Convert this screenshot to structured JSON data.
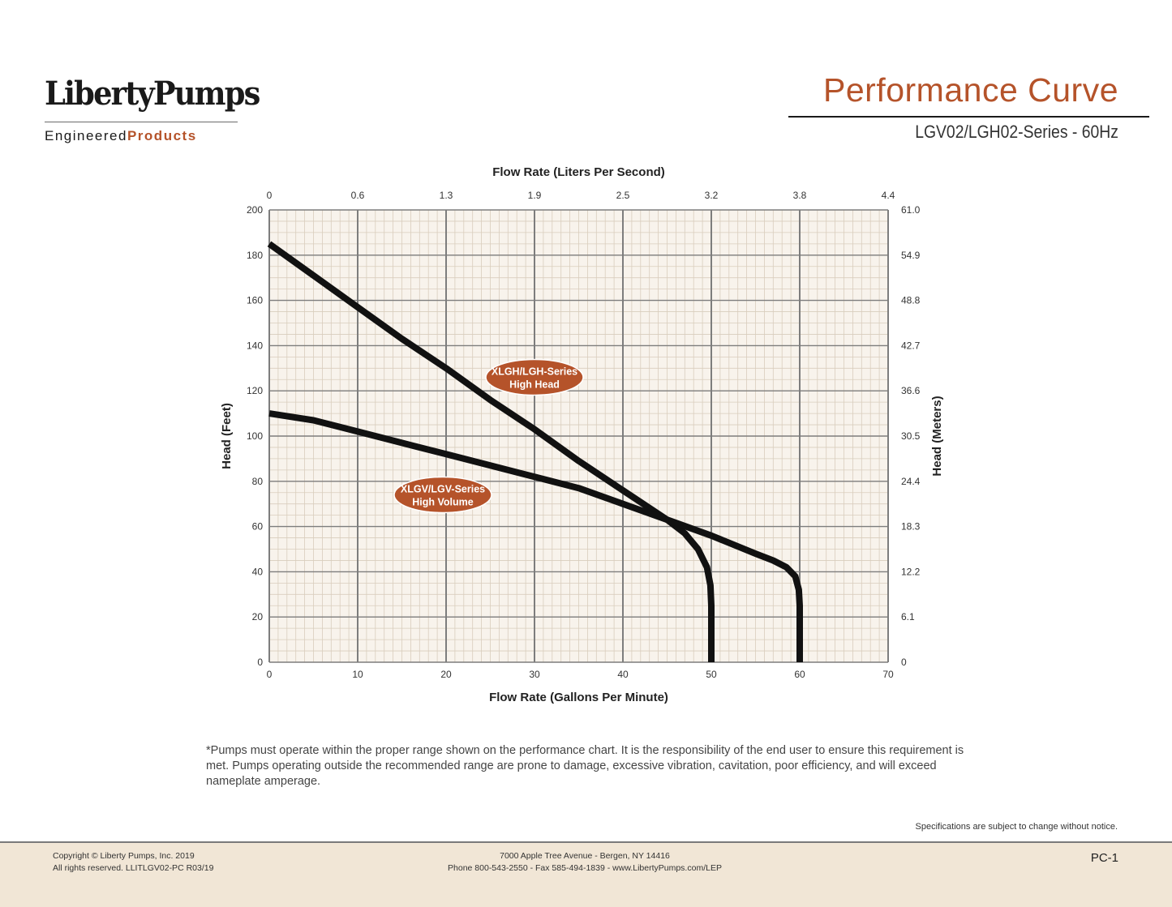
{
  "header": {
    "brand": "LibertyPumps",
    "sub_plain": "Engineered",
    "sub_accent": "Products",
    "title": "Performance Curve",
    "subtitle": "LGV02/LGH02-Series - 60Hz"
  },
  "colors": {
    "accent": "#b5532a",
    "label_fill": "#b5532a",
    "grid_minor": "#d9cdbd",
    "grid_major": "#7d7d7d",
    "plot_bg": "#f8f3ec",
    "footer_bg": "#f1e6d6"
  },
  "chart_data": {
    "type": "line",
    "xlabel": "Flow Rate (Gallons Per Minute)",
    "x2label": "Flow Rate (Liters Per Second)",
    "ylabel": "Head (Feet)",
    "y2label": "Head (Meters)",
    "xlim": [
      0,
      70
    ],
    "ylim": [
      0,
      200
    ],
    "x_ticks": [
      0,
      10,
      20,
      30,
      40,
      50,
      60,
      70
    ],
    "y_ticks": [
      0,
      20,
      40,
      60,
      80,
      100,
      120,
      140,
      160,
      180,
      200
    ],
    "x2_ticks": [
      "0",
      "0.6",
      "1.3",
      "1.9",
      "2.5",
      "3.2",
      "3.8",
      "4.4"
    ],
    "y2_ticks": [
      "0",
      "6.1",
      "12.2",
      "18.3",
      "24.4",
      "30.5",
      "36.6",
      "42.7",
      "48.8",
      "54.9",
      "61.0"
    ],
    "grid": true,
    "series": [
      {
        "name": "XLGH/LGH-Series",
        "label_line2": "High Head",
        "label_x": 30,
        "label_y": 126,
        "x": [
          0,
          5,
          10,
          15,
          20,
          25,
          30,
          35,
          40,
          45,
          47,
          48.5,
          49.5,
          49.9,
          50,
          50
        ],
        "y": [
          185,
          171,
          157,
          143,
          130,
          116,
          103,
          89,
          76,
          63,
          57,
          50,
          42,
          34,
          25,
          0
        ]
      },
      {
        "name": "XLGV/LGV-Series",
        "label_line2": "High Volume",
        "label_x": 20,
        "label_y": 74,
        "x": [
          0,
          5,
          10,
          15,
          20,
          25,
          30,
          35,
          40,
          45,
          50,
          55,
          57,
          58.5,
          59.5,
          59.9,
          60,
          60
        ],
        "y": [
          110,
          107,
          102,
          97,
          92,
          87,
          82,
          77,
          70,
          63,
          56,
          48,
          45,
          42,
          38,
          32,
          25,
          0
        ]
      }
    ]
  },
  "footnote": "*Pumps must operate within the proper range shown on the performance chart. It is the responsibility of the end user to ensure this requirement is met. Pumps operating outside the recommended range are prone to damage, excessive vibration, cavitation, poor efficiency, and will exceed nameplate amperage.",
  "spec_note": "Specifications are subject to change without notice.",
  "footer": {
    "copyright": "Copyright © Liberty Pumps, Inc. 2019",
    "rights": "All rights reserved. LLITLGV02-PC R03/19",
    "address": "7000 Apple Tree Avenue - Bergen, NY 14416",
    "contact": "Phone 800-543-2550 - Fax 585-494-1839 - www.LibertyPumps.com/LEP",
    "page": "PC-1"
  }
}
